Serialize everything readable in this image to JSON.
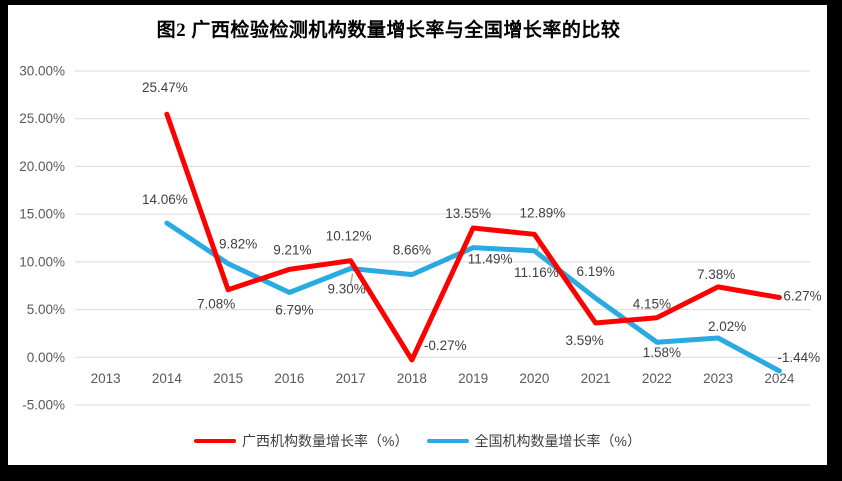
{
  "window": {
    "frame_color": "#000000",
    "background": "#FFFFFF"
  },
  "chart_data": {
    "type": "line",
    "title": "图2 广西检验检测机构数量增长率与全国增长率的比较",
    "categories": [
      "2013",
      "2014",
      "2015",
      "2016",
      "2017",
      "2018",
      "2019",
      "2020",
      "2021",
      "2022",
      "2023",
      "2024"
    ],
    "series": [
      {
        "name": "广西机构数量增长率（%）",
        "color": "#FF0000",
        "values": [
          null,
          25.47,
          7.08,
          9.21,
          10.12,
          -0.27,
          13.55,
          12.89,
          3.59,
          4.15,
          7.38,
          6.27
        ],
        "data_labels": [
          null,
          "25.47%",
          "7.08%",
          "9.21%",
          "10.12%",
          "-0.27%",
          "13.55%",
          "12.89%",
          "3.59%",
          "4.15%",
          "7.38%",
          "6.27%"
        ]
      },
      {
        "name": "全国机构数量增长率（%）",
        "color": "#29ABE2",
        "values": [
          null,
          14.06,
          9.82,
          6.79,
          9.3,
          8.66,
          11.49,
          11.16,
          6.19,
          1.58,
          2.02,
          -1.44
        ],
        "data_labels": [
          null,
          "14.06%",
          "9.82%",
          "6.79%",
          "9.30%",
          "8.66%",
          "11.49%",
          "11.16%",
          "6.19%",
          "1.58%",
          "2.02%",
          "-1.44%"
        ]
      }
    ],
    "yticks": [
      "30.00%",
      "25.00%",
      "20.00%",
      "15.00%",
      "10.00%",
      "5.00%",
      "0.00%",
      "-5.00%"
    ],
    "ylim": [
      -5,
      30
    ],
    "ytick_step": 5,
    "xlabel": "",
    "ylabel": "",
    "grid": true,
    "legend_position": "bottom",
    "colors": {
      "grid": "#D9D9D9",
      "axis_text": "#595959",
      "data_label_text": "#404040",
      "leader": "#A6A6A6"
    },
    "layout": {
      "line_width": 5,
      "label_offsets": [
        [
          null,
          [
            -2,
            -22,
            "m"
          ],
          [
            -12,
            19,
            "m"
          ],
          [
            3,
            -15,
            "m"
          ],
          [
            -2,
            -20,
            "m"
          ],
          [
            12,
            -10,
            "s"
          ],
          [
            -5,
            -10,
            "m"
          ],
          [
            8,
            -17,
            "m"
          ],
          [
            -11,
            22,
            "m"
          ],
          [
            -5,
            -9,
            "m"
          ],
          [
            -2,
            -8,
            "m"
          ],
          [
            4,
            3,
            "s"
          ]
        ],
        [
          null,
          [
            -2,
            -19,
            "m"
          ],
          [
            10,
            -15,
            "m"
          ],
          [
            5,
            22,
            "m"
          ],
          [
            -4,
            25,
            "m"
          ],
          [
            0,
            -20,
            "m"
          ],
          [
            17,
            16,
            "m"
          ],
          [
            2,
            26,
            "m"
          ],
          [
            0,
            -22,
            "m"
          ],
          [
            5,
            15,
            "m"
          ],
          [
            9,
            -7,
            "m"
          ],
          [
            -2,
            -9,
            "s"
          ]
        ]
      ],
      "leaders": [
        {
          "series": 1,
          "index": 4,
          "from": [
            2,
            5
          ],
          "to": [
            0,
            16
          ]
        },
        {
          "series": 1,
          "index": 7,
          "from": [
            6,
            -9
          ],
          "to": [
            2,
            1
          ]
        }
      ]
    }
  }
}
